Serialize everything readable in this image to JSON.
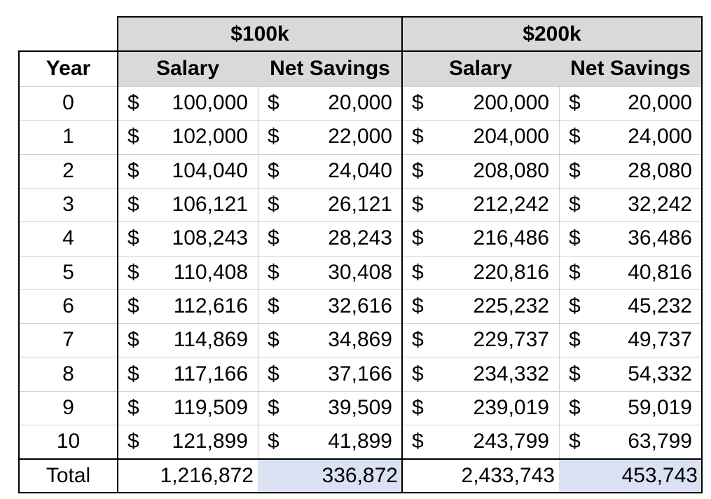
{
  "groups": [
    {
      "label": "$100k"
    },
    {
      "label": "$200k"
    }
  ],
  "headers": {
    "year": "Year",
    "salary": "Salary",
    "net_savings": "Net Savings"
  },
  "currency_symbol": "$",
  "rows": [
    {
      "year": "0",
      "salary_100k": "100,000",
      "savings_100k": "20,000",
      "salary_200k": "200,000",
      "savings_200k": "20,000"
    },
    {
      "year": "1",
      "salary_100k": "102,000",
      "savings_100k": "22,000",
      "salary_200k": "204,000",
      "savings_200k": "24,000"
    },
    {
      "year": "2",
      "salary_100k": "104,040",
      "savings_100k": "24,040",
      "salary_200k": "208,080",
      "savings_200k": "28,080"
    },
    {
      "year": "3",
      "salary_100k": "106,121",
      "savings_100k": "26,121",
      "salary_200k": "212,242",
      "savings_200k": "32,242"
    },
    {
      "year": "4",
      "salary_100k": "108,243",
      "savings_100k": "28,243",
      "salary_200k": "216,486",
      "savings_200k": "36,486"
    },
    {
      "year": "5",
      "salary_100k": "110,408",
      "savings_100k": "30,408",
      "salary_200k": "220,816",
      "savings_200k": "40,816"
    },
    {
      "year": "6",
      "salary_100k": "112,616",
      "savings_100k": "32,616",
      "salary_200k": "225,232",
      "savings_200k": "45,232"
    },
    {
      "year": "7",
      "salary_100k": "114,869",
      "savings_100k": "34,869",
      "salary_200k": "229,737",
      "savings_200k": "49,737"
    },
    {
      "year": "8",
      "salary_100k": "117,166",
      "savings_100k": "37,166",
      "salary_200k": "234,332",
      "savings_200k": "54,332"
    },
    {
      "year": "9",
      "salary_100k": "119,509",
      "savings_100k": "39,509",
      "salary_200k": "239,019",
      "savings_200k": "59,019"
    },
    {
      "year": "10",
      "salary_100k": "121,899",
      "savings_100k": "41,899",
      "salary_200k": "243,799",
      "savings_200k": "63,799"
    }
  ],
  "total": {
    "label": "Total",
    "salary_100k": "1,216,872",
    "savings_100k": "336,872",
    "salary_200k": "2,433,743",
    "savings_200k": "453,743"
  },
  "colors": {
    "header_fill": "#d9d9d9",
    "total_highlight": "#d9e1f2"
  }
}
